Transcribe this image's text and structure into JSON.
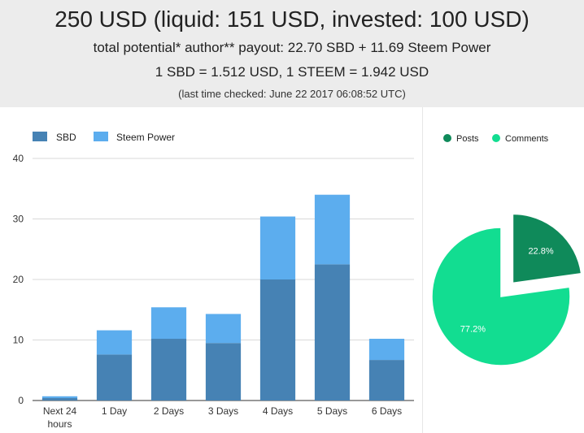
{
  "header": {
    "title": "250 USD (liquid: 151 USD, invested: 100 USD)",
    "payout": "total potential* author** payout: 22.70 SBD + 11.69 Steem Power",
    "rates": "1 SBD = 1.512 USD, 1 STEEM = 1.942 USD",
    "checked": "(last time checked: June 22 2017 06:08:52 UTC)"
  },
  "chart_data": [
    {
      "type": "bar",
      "stacked": true,
      "categories": [
        "Next 24 hours",
        "1 Day",
        "2 Days",
        "3 Days",
        "4 Days",
        "5 Days",
        "6 Days"
      ],
      "category_lines": [
        [
          "Next 24",
          "hours"
        ],
        [
          "1 Day"
        ],
        [
          "2 Days"
        ],
        [
          "3 Days"
        ],
        [
          "4 Days"
        ],
        [
          "5 Days"
        ],
        [
          "6 Days"
        ]
      ],
      "series": [
        {
          "name": "SBD",
          "color": "#4682b4",
          "values": [
            0.4,
            7.6,
            10.2,
            9.5,
            20.0,
            22.5,
            6.7
          ]
        },
        {
          "name": "Steem Power",
          "color": "#5cadee",
          "values": [
            0.3,
            4.0,
            5.2,
            4.8,
            10.4,
            11.5,
            3.5
          ]
        }
      ],
      "ylim": [
        0,
        40
      ],
      "yticks": [
        0,
        10,
        20,
        30,
        40
      ],
      "grid": true,
      "legend": "top-left"
    },
    {
      "type": "pie",
      "labels": [
        "Posts",
        "Comments"
      ],
      "values": [
        22.8,
        77.2
      ],
      "value_labels": [
        "22.8%",
        "77.2%"
      ],
      "colors": [
        "#0f8a5a",
        "#12dd91"
      ],
      "exploded": "Posts",
      "legend": "top"
    }
  ]
}
